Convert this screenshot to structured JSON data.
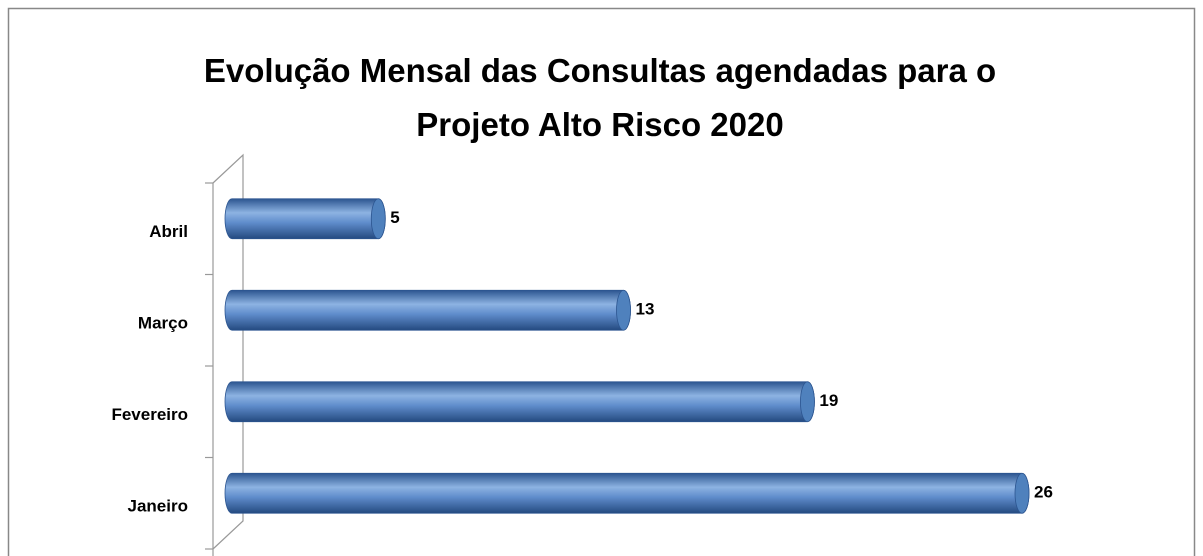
{
  "chart_data": {
    "type": "bar",
    "orientation": "horizontal",
    "title": "Evolução Mensal das Consultas agendadas para o Projeto Alto Risco 2020",
    "categories": [
      "Janeiro",
      "Fevereiro",
      "Março",
      "Abril"
    ],
    "values": [
      26,
      19,
      13,
      5
    ],
    "color": "#4f81bd"
  }
}
